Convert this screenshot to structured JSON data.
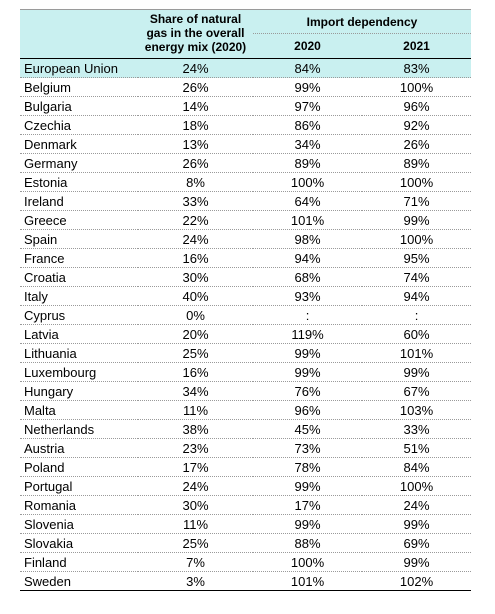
{
  "header": {
    "share_label": "Share of natural gas in the overall energy mix (2020)",
    "import_label": "Import dependency",
    "year_2020": "2020",
    "year_2021": "2021"
  },
  "rows": [
    {
      "country": "European Union",
      "share": "24%",
      "y2020": "84%",
      "y2021": "83%"
    },
    {
      "country": "Belgium",
      "share": "26%",
      "y2020": "99%",
      "y2021": "100%"
    },
    {
      "country": "Bulgaria",
      "share": "14%",
      "y2020": "97%",
      "y2021": "96%"
    },
    {
      "country": "Czechia",
      "share": "18%",
      "y2020": "86%",
      "y2021": "92%"
    },
    {
      "country": "Denmark",
      "share": "13%",
      "y2020": "34%",
      "y2021": "26%"
    },
    {
      "country": "Germany",
      "share": "26%",
      "y2020": "89%",
      "y2021": "89%"
    },
    {
      "country": "Estonia",
      "share": "8%",
      "y2020": "100%",
      "y2021": "100%"
    },
    {
      "country": "Ireland",
      "share": "33%",
      "y2020": "64%",
      "y2021": "71%"
    },
    {
      "country": "Greece",
      "share": "22%",
      "y2020": "101%",
      "y2021": "99%"
    },
    {
      "country": "Spain",
      "share": "24%",
      "y2020": "98%",
      "y2021": "100%"
    },
    {
      "country": "France",
      "share": "16%",
      "y2020": "94%",
      "y2021": "95%"
    },
    {
      "country": "Croatia",
      "share": "30%",
      "y2020": "68%",
      "y2021": "74%"
    },
    {
      "country": "Italy",
      "share": "40%",
      "y2020": "93%",
      "y2021": "94%"
    },
    {
      "country": "Cyprus",
      "share": "0%",
      "y2020": ":",
      "y2021": ":"
    },
    {
      "country": "Latvia",
      "share": "20%",
      "y2020": "119%",
      "y2021": "60%"
    },
    {
      "country": "Lithuania",
      "share": "25%",
      "y2020": "99%",
      "y2021": "101%"
    },
    {
      "country": "Luxembourg",
      "share": "16%",
      "y2020": "99%",
      "y2021": "99%"
    },
    {
      "country": "Hungary",
      "share": "34%",
      "y2020": "76%",
      "y2021": "67%"
    },
    {
      "country": "Malta",
      "share": "11%",
      "y2020": "96%",
      "y2021": "103%"
    },
    {
      "country": "Netherlands",
      "share": "38%",
      "y2020": "45%",
      "y2021": "33%"
    },
    {
      "country": "Austria",
      "share": "23%",
      "y2020": "73%",
      "y2021": "51%"
    },
    {
      "country": "Poland",
      "share": "17%",
      "y2020": "78%",
      "y2021": "84%"
    },
    {
      "country": "Portugal",
      "share": "24%",
      "y2020": "99%",
      "y2021": "100%"
    },
    {
      "country": "Romania",
      "share": "30%",
      "y2020": "17%",
      "y2021": "24%"
    },
    {
      "country": "Slovenia",
      "share": "11%",
      "y2020": "99%",
      "y2021": "99%"
    },
    {
      "country": "Slovakia",
      "share": "25%",
      "y2020": "88%",
      "y2021": "69%"
    },
    {
      "country": "Finland",
      "share": "7%",
      "y2020": "100%",
      "y2021": "99%"
    },
    {
      "country": "Sweden",
      "share": "3%",
      "y2020": "101%",
      "y2021": "102%"
    }
  ]
}
